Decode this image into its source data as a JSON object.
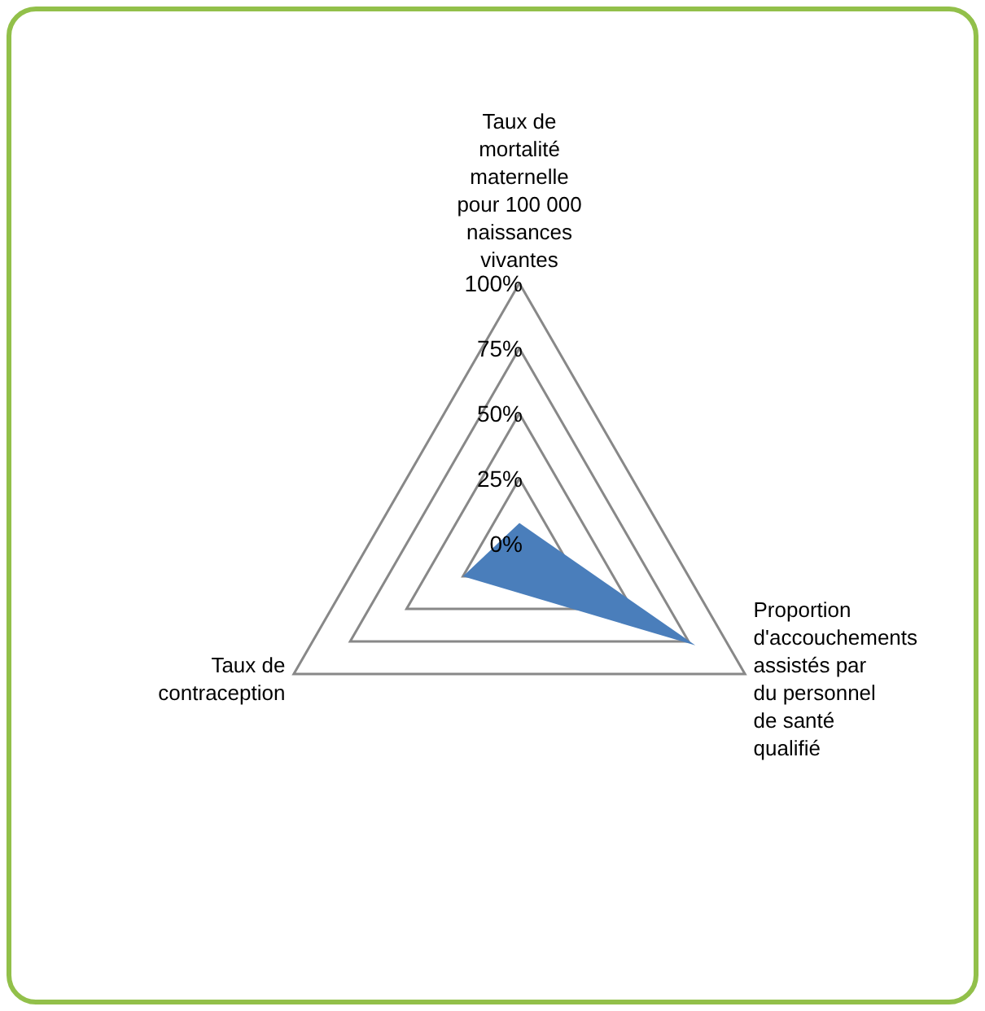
{
  "chart_data": {
    "type": "radar",
    "categories": [
      "Taux de mortalité maternelle pour 100 000 naissances vivantes",
      "Proportion d'accouchements assistés par du personnel de santé qualifié",
      "Taux de contraception"
    ],
    "series": [
      {
        "color": "#4a7ebb",
        "values": [
          8,
          78,
          25
        ]
      }
    ],
    "ylim": [
      0,
      100
    ],
    "yticks": [
      {
        "value": 0,
        "label": "0%"
      },
      {
        "value": 25,
        "label": "25%"
      },
      {
        "value": 50,
        "label": "50%"
      },
      {
        "value": 75,
        "label": "75%"
      },
      {
        "value": 100,
        "label": "100%"
      }
    ],
    "grid": true
  }
}
